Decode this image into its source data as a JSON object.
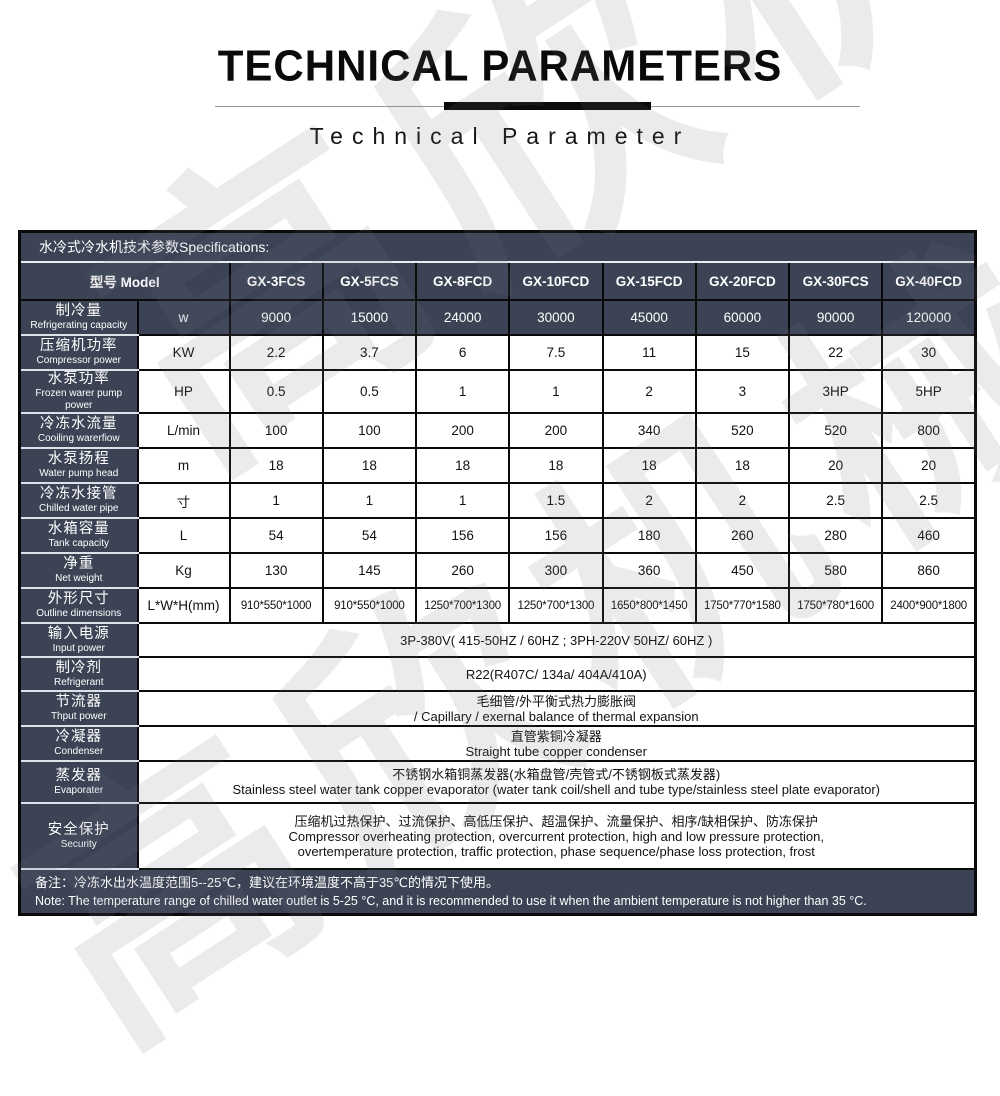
{
  "watermark": {
    "text": "高欣机械"
  },
  "header": {
    "title": "TECHNICAL PARAMETERS",
    "subtitle": "Technical Parameter"
  },
  "table": {
    "caption": "水冷式冷水机技术参数Specifications:",
    "model_label": "型号 Model",
    "models": [
      "GX-3FCS",
      "GX-5FCS",
      "GX-8FCD",
      "GX-10FCD",
      "GX-15FCD",
      "GX-20FCD",
      "GX-30FCS",
      "GX-40FCD"
    ],
    "spec_rows": [
      {
        "label_zh": "制冷量",
        "label_en": "Refrigerating capacity",
        "unit": "w",
        "dark": true,
        "values": [
          "9000",
          "15000",
          "24000",
          "30000",
          "45000",
          "60000",
          "90000",
          "120000"
        ]
      },
      {
        "label_zh": "压缩机功率",
        "label_en": "Compressor power",
        "unit": "KW",
        "dark": false,
        "values": [
          "2.2",
          "3.7",
          "6",
          "7.5",
          "11",
          "15",
          "22",
          "30"
        ]
      },
      {
        "label_zh": "水泵功率",
        "label_en": "Frozen warer pump power",
        "unit": "HP",
        "dark": false,
        "values": [
          "0.5",
          "0.5",
          "1",
          "1",
          "2",
          "3",
          "3HP",
          "5HP"
        ]
      },
      {
        "label_zh": "冷冻水流量",
        "label_en": "Cooiling warerfiow",
        "unit": "L/min",
        "dark": false,
        "values": [
          "100",
          "100",
          "200",
          "200",
          "340",
          "520",
          "520",
          "800"
        ]
      },
      {
        "label_zh": "水泵扬程",
        "label_en": "Water pump head",
        "unit": "m",
        "dark": false,
        "values": [
          "18",
          "18",
          "18",
          "18",
          "18",
          "18",
          "20",
          "20"
        ]
      },
      {
        "label_zh": "冷冻水接管",
        "label_en": "Chilled water pipe",
        "unit": "寸",
        "dark": false,
        "values": [
          "1",
          "1",
          "1",
          "1.5",
          "2",
          "2",
          "2.5",
          "2.5"
        ]
      },
      {
        "label_zh": "水箱容量",
        "label_en": "Tank capacity",
        "unit": "L",
        "dark": false,
        "values": [
          "54",
          "54",
          "156",
          "156",
          "180",
          "260",
          "280",
          "460"
        ]
      },
      {
        "label_zh": "净重",
        "label_en": "Net weight",
        "unit": "Kg",
        "dark": false,
        "values": [
          "130",
          "145",
          "260",
          "300",
          "360",
          "450",
          "580",
          "860"
        ]
      },
      {
        "label_zh": "外形尺寸",
        "label_en": "Outline dimensions",
        "unit": "L*W*H(mm)",
        "dark": false,
        "dims": true,
        "values": [
          "910*550*1000",
          "910*550*1000",
          "1250*700*1300",
          "1250*700*1300",
          "1650*800*1450",
          "1750*770*1580",
          "1750*780*1600",
          "2400*900*1800"
        ]
      }
    ],
    "merged_rows": [
      {
        "label_zh": "输入电源",
        "label_en": "Input power",
        "lines": [
          "3P-380V( 415-50HZ / 60HZ ; 3PH-220V 50HZ/ 60HZ )"
        ]
      },
      {
        "label_zh": "制冷剂",
        "label_en": "Refrigerant",
        "lines": [
          "R22(R407C/ 134a/ 404A/410A)"
        ]
      },
      {
        "label_zh": "节流器",
        "label_en": "Thput power",
        "lines": [
          "毛细管/外平衡式热力膨胀阀",
          "/ Capillary / exernal balance of thermal expansion"
        ]
      },
      {
        "label_zh": "冷凝器",
        "label_en": "Condenser",
        "lines": [
          "直管紫铜冷凝器",
          "Straight tube copper condenser"
        ]
      },
      {
        "label_zh": "蒸发器",
        "label_en": "Evaporater",
        "lines": [
          "不锈钢水箱铜蒸发器(水箱盘管/壳管式/不锈钢板式蒸发器)",
          "Stainless steel water tank copper evaporator (water tank coil/shell and tube type/stainless steel plate evaporator)"
        ]
      },
      {
        "label_zh": "安全保护",
        "label_en": "Security",
        "lines": [
          "压缩机过热保护、过流保护、高低压保护、超温保护、流量保护、相序/缺相保护、防冻保护",
          "Compressor overheating protection, overcurrent protection, high and low pressure protection,",
          "overtemperature protection, traffic protection, phase sequence/phase loss protection, frost"
        ]
      }
    ],
    "note_lines": [
      "备注：冷冻水出水温度范围5--25℃，建议在环境温度不高于35℃的情况下使用。",
      "Note: The temperature range of chilled water outlet is 5-25 °C, and it is recommended to use it when the ambient temperature is not higher than 35 °C."
    ]
  },
  "colors": {
    "dark_cell": "#3b4354",
    "border": "#0a0a0a",
    "page_bg": "#ffffff"
  }
}
